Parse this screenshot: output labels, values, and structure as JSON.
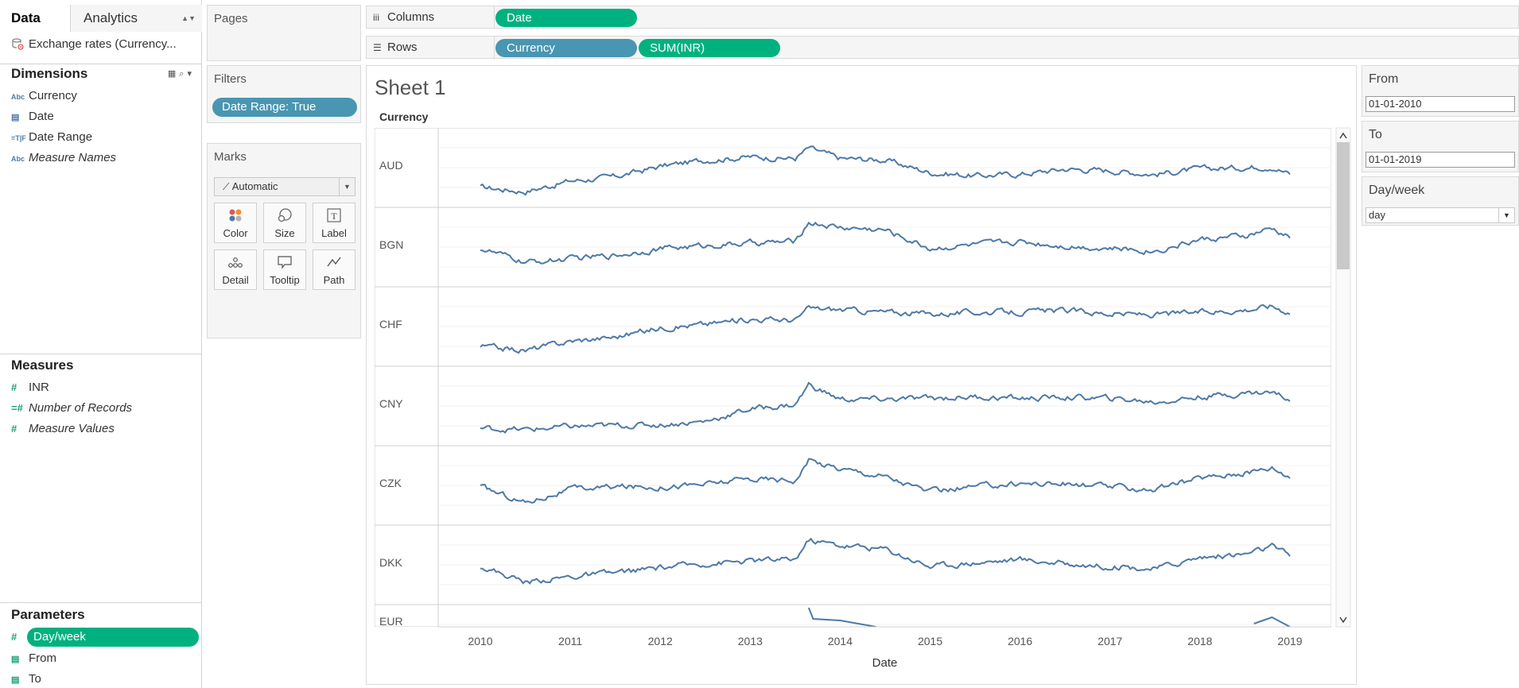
{
  "data_pane": {
    "tab_data": "Data",
    "tab_analytics": "Analytics",
    "datasource": "Exchange rates (Currency...",
    "dimensions_title": "Dimensions",
    "dimensions": [
      {
        "icon": "Abc",
        "label": "Currency"
      },
      {
        "icon": "calendar",
        "label": "Date"
      },
      {
        "icon": "=T|F",
        "label": "Date Range"
      },
      {
        "icon": "Abc",
        "label": "Measure Names"
      }
    ],
    "measures_title": "Measures",
    "measures": [
      {
        "label": "INR"
      },
      {
        "label": "Number of Records"
      },
      {
        "label": "Measure Values"
      }
    ],
    "parameters_title": "Parameters",
    "parameters": [
      {
        "label": "Day/week"
      },
      {
        "label": "From"
      },
      {
        "label": "To"
      }
    ]
  },
  "cards": {
    "pages": "Pages",
    "filters": "Filters",
    "filter_pill": "Date Range: True",
    "marks": "Marks",
    "mark_type": "Automatic",
    "mark_buttons": [
      "Color",
      "Size",
      "Label",
      "Detail",
      "Tooltip",
      "Path"
    ]
  },
  "shelves": {
    "columns_label": "Columns",
    "rows_label": "Rows",
    "columns_pills": [
      "Date"
    ],
    "rows_pills": [
      "Currency",
      "SUM(INR)"
    ]
  },
  "sheet": {
    "title": "Sheet 1",
    "row_header": "Currency",
    "x_axis_title": "Date"
  },
  "params_panel": {
    "from_label": "From",
    "from_value": "01-01-2010",
    "to_label": "To",
    "to_value": "01-01-2019",
    "dayweek_label": "Day/week",
    "dayweek_value": "day"
  },
  "colors": {
    "line": "#4e79a7",
    "green_pill": "#00b180",
    "blue_pill": "#4996b2"
  },
  "chart_data": {
    "type": "line",
    "title": "Sheet 1",
    "xlabel": "Date",
    "ylabel": "",
    "x_ticks": [
      "2010",
      "2011",
      "2012",
      "2013",
      "2014",
      "2015",
      "2016",
      "2017",
      "2018",
      "2019"
    ],
    "x_range": [
      2010.0,
      2019.0
    ],
    "panes": [
      "AUD",
      "BGN",
      "CHF",
      "CNY",
      "CZK",
      "DKK",
      "EUR"
    ],
    "note_values": "relative level per pane (0=bottom,1=top), sampled semiannually",
    "x": [
      2010.0,
      2010.5,
      2011.0,
      2011.5,
      2012.0,
      2012.5,
      2013.0,
      2013.5,
      2013.65,
      2014.0,
      2014.5,
      2015.0,
      2015.5,
      2016.0,
      2016.5,
      2017.0,
      2017.5,
      2018.0,
      2018.5,
      2018.8,
      2019.0
    ],
    "series": [
      {
        "name": "AUD",
        "values": [
          0.2,
          0.12,
          0.32,
          0.4,
          0.6,
          0.72,
          0.78,
          0.75,
          0.95,
          0.75,
          0.72,
          0.48,
          0.42,
          0.45,
          0.55,
          0.52,
          0.45,
          0.55,
          0.58,
          0.6,
          0.45
        ]
      },
      {
        "name": "BGN",
        "values": [
          0.55,
          0.28,
          0.35,
          0.42,
          0.55,
          0.6,
          0.65,
          0.68,
          1.05,
          0.95,
          0.9,
          0.55,
          0.62,
          0.68,
          0.6,
          0.55,
          0.5,
          0.72,
          0.78,
          0.92,
          0.75
        ]
      },
      {
        "name": "CHF",
        "values": [
          0.2,
          0.12,
          0.3,
          0.38,
          0.55,
          0.62,
          0.72,
          0.7,
          0.92,
          0.9,
          0.85,
          0.82,
          0.85,
          0.85,
          0.88,
          0.82,
          0.8,
          0.85,
          0.9,
          0.97,
          0.85
        ]
      },
      {
        "name": "CNY",
        "values": [
          0.15,
          0.12,
          0.18,
          0.2,
          0.22,
          0.28,
          0.52,
          0.6,
          0.98,
          0.7,
          0.7,
          0.72,
          0.75,
          0.72,
          0.74,
          0.72,
          0.65,
          0.75,
          0.82,
          0.84,
          0.7
        ]
      },
      {
        "name": "CZK",
        "values": [
          0.55,
          0.25,
          0.5,
          0.55,
          0.55,
          0.6,
          0.7,
          0.68,
          1.05,
          0.9,
          0.75,
          0.45,
          0.55,
          0.62,
          0.6,
          0.55,
          0.5,
          0.72,
          0.82,
          0.92,
          0.75
        ]
      },
      {
        "name": "DKK",
        "values": [
          0.55,
          0.25,
          0.35,
          0.42,
          0.52,
          0.6,
          0.65,
          0.68,
          1.05,
          0.95,
          0.88,
          0.55,
          0.62,
          0.68,
          0.6,
          0.55,
          0.5,
          0.72,
          0.78,
          0.92,
          0.75
        ]
      }
    ]
  }
}
